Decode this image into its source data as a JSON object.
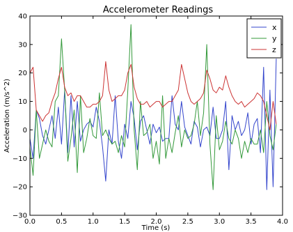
{
  "chart_data": {
    "type": "line",
    "title": "Accelerometer Readings",
    "xlabel": "Time (s)",
    "ylabel": "Acceleration (m/s^2)",
    "xlim": [
      0.0,
      4.0
    ],
    "ylim": [
      -30,
      40
    ],
    "xticks": [
      0.0,
      0.5,
      1.0,
      1.5,
      2.0,
      2.5,
      3.0,
      3.5,
      4.0
    ],
    "xtick_labels": [
      "0.0",
      "0.5",
      "1.0",
      "1.5",
      "2.0",
      "2.5",
      "3.0",
      "3.5",
      "4.0"
    ],
    "yticks": [
      -30,
      -20,
      -10,
      0,
      10,
      20,
      30,
      40
    ],
    "ytick_labels": [
      "−30",
      "−20",
      "−10",
      "0",
      "10",
      "20",
      "30",
      "40"
    ],
    "grid": false,
    "legend_position": "top-right",
    "series": [
      {
        "name": "x",
        "color": "#3344cc",
        "x": [
          0.0,
          0.05,
          0.1,
          0.15,
          0.2,
          0.25,
          0.3,
          0.35,
          0.4,
          0.45,
          0.5,
          0.55,
          0.6,
          0.65,
          0.7,
          0.75,
          0.8,
          0.85,
          0.9,
          0.95,
          1.0,
          1.05,
          1.1,
          1.15,
          1.2,
          1.25,
          1.3,
          1.35,
          1.4,
          1.45,
          1.5,
          1.55,
          1.6,
          1.65,
          1.7,
          1.75,
          1.8,
          1.85,
          1.9,
          1.95,
          2.0,
          2.05,
          2.1,
          2.15,
          2.2,
          2.25,
          2.3,
          2.35,
          2.4,
          2.45,
          2.5,
          2.55,
          2.6,
          2.65,
          2.7,
          2.75,
          2.8,
          2.85,
          2.9,
          2.95,
          3.0,
          3.05,
          3.1,
          3.15,
          3.2,
          3.25,
          3.3,
          3.35,
          3.4,
          3.45,
          3.5,
          3.55,
          3.6,
          3.65,
          3.7,
          3.75,
          3.8,
          3.85,
          3.9
        ],
        "y": [
          -3,
          -10,
          7,
          4,
          -2,
          -5,
          0,
          5,
          -3,
          8,
          -5,
          14,
          -8,
          12,
          -6,
          10,
          -4,
          0,
          2,
          3,
          1,
          8,
          3,
          -6,
          -18,
          0,
          -5,
          12,
          -4,
          -10,
          2,
          -3,
          10,
          4,
          -7,
          3,
          5,
          0,
          -5,
          2,
          -1,
          1,
          -4,
          -3,
          -3,
          12,
          2,
          0,
          10,
          1,
          -2,
          -5,
          3,
          1,
          -6,
          0,
          1,
          -2,
          8,
          -3,
          -3,
          0,
          10,
          -14,
          5,
          0,
          3,
          -2,
          0,
          6,
          -5,
          2,
          4,
          -8,
          22,
          -21,
          14,
          -20,
          25
        ]
      },
      {
        "name": "y",
        "color": "#33993a",
        "x": [
          0.0,
          0.05,
          0.1,
          0.15,
          0.2,
          0.25,
          0.3,
          0.35,
          0.4,
          0.45,
          0.5,
          0.55,
          0.6,
          0.65,
          0.7,
          0.75,
          0.8,
          0.85,
          0.9,
          0.95,
          1.0,
          1.05,
          1.1,
          1.15,
          1.2,
          1.25,
          1.3,
          1.35,
          1.4,
          1.45,
          1.5,
          1.55,
          1.6,
          1.65,
          1.7,
          1.75,
          1.8,
          1.85,
          1.9,
          1.95,
          2.0,
          2.05,
          2.1,
          2.15,
          2.2,
          2.25,
          2.3,
          2.35,
          2.4,
          2.45,
          2.5,
          2.55,
          2.6,
          2.65,
          2.7,
          2.75,
          2.8,
          2.85,
          2.9,
          2.95,
          3.0,
          3.05,
          3.1,
          3.15,
          3.2,
          3.25,
          3.3,
          3.35,
          3.4,
          3.45,
          3.5,
          3.55,
          3.6,
          3.65,
          3.7,
          3.75,
          3.8,
          3.85,
          3.9
        ],
        "y": [
          -6,
          -16,
          7,
          -10,
          -5,
          0,
          -4,
          -6,
          10,
          12,
          32,
          14,
          -11,
          -3,
          7,
          -15,
          12,
          -8,
          -3,
          4,
          -2,
          -3,
          13,
          -2,
          0,
          -3,
          -5,
          -4,
          -8,
          -2,
          -6,
          14,
          37,
          0,
          -14,
          10,
          -2,
          -1,
          2,
          -10,
          -4,
          -12,
          12,
          -10,
          -3,
          -8,
          -1,
          5,
          -6,
          0,
          -3,
          -2,
          2,
          10,
          -2,
          6,
          30,
          -5,
          -21,
          5,
          -7,
          -4,
          3,
          -3,
          -5,
          0,
          -3,
          -10,
          -4,
          -8,
          -3,
          -5,
          -5,
          0,
          -8,
          10,
          -2,
          -7,
          2
        ]
      },
      {
        "name": "z",
        "color": "#cc3333",
        "x": [
          0.0,
          0.05,
          0.1,
          0.15,
          0.2,
          0.25,
          0.3,
          0.35,
          0.4,
          0.45,
          0.5,
          0.55,
          0.6,
          0.65,
          0.7,
          0.75,
          0.8,
          0.85,
          0.9,
          0.95,
          1.0,
          1.05,
          1.1,
          1.15,
          1.2,
          1.25,
          1.3,
          1.35,
          1.4,
          1.45,
          1.5,
          1.55,
          1.6,
          1.65,
          1.7,
          1.75,
          1.8,
          1.85,
          1.9,
          1.95,
          2.0,
          2.05,
          2.1,
          2.15,
          2.2,
          2.25,
          2.3,
          2.35,
          2.4,
          2.45,
          2.5,
          2.55,
          2.6,
          2.65,
          2.7,
          2.75,
          2.8,
          2.85,
          2.9,
          2.95,
          3.0,
          3.05,
          3.1,
          3.15,
          3.2,
          3.25,
          3.3,
          3.35,
          3.4,
          3.45,
          3.5,
          3.55,
          3.6,
          3.65,
          3.7,
          3.75,
          3.8,
          3.85,
          3.9
        ],
        "y": [
          20,
          22,
          7,
          5,
          3,
          5,
          6,
          10,
          13,
          18,
          22,
          15,
          12,
          13,
          10,
          12,
          12,
          10,
          8,
          8,
          9,
          9,
          10,
          12,
          24,
          14,
          10,
          11,
          12,
          12,
          14,
          20,
          23,
          15,
          11,
          9,
          9,
          10,
          8,
          9,
          10,
          10,
          8,
          9,
          10,
          10,
          12,
          14,
          23,
          18,
          13,
          10,
          9,
          10,
          11,
          13,
          21,
          18,
          14,
          13,
          15,
          14,
          19,
          15,
          12,
          10,
          9,
          10,
          8,
          9,
          10,
          11,
          13,
          12,
          10,
          5,
          0,
          10,
          2
        ]
      }
    ]
  }
}
